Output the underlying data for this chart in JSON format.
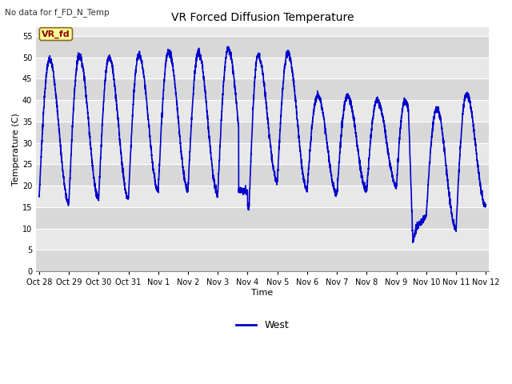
{
  "title": "VR Forced Diffusion Temperature",
  "top_left_text": "No data for f_FD_N_Temp",
  "xlabel": "Time",
  "ylabel": "Temperature (C)",
  "ylim": [
    0,
    57
  ],
  "yticks": [
    0,
    5,
    10,
    15,
    20,
    25,
    30,
    35,
    40,
    45,
    50,
    55
  ],
  "line_color": "#0000CC",
  "line_width": 1.2,
  "fig_bg_color": "#FFFFFF",
  "plot_bg_color": "#E8E8E8",
  "grid_color": "#FFFFFF",
  "legend_label": "West",
  "vr_fd_label": "VR_fd",
  "vr_fd_box_color": "#FFFF99",
  "vr_fd_text_color": "#8B0000",
  "x_tick_labels": [
    "Oct 28",
    "Oct 29",
    "Oct 30",
    "Oct 31",
    "Nov 1",
    "Nov 2",
    "Nov 3",
    "Nov 4",
    "Nov 5",
    "Nov 6",
    "Nov 7",
    "Nov 8",
    "Nov 9",
    "Nov 10",
    "Nov 11",
    "Nov 12"
  ],
  "x_tick_positions": [
    0,
    1,
    2,
    3,
    4,
    5,
    6,
    7,
    8,
    9,
    10,
    11,
    12,
    13,
    14,
    15
  ],
  "xlim": [
    -0.1,
    15.1
  ]
}
